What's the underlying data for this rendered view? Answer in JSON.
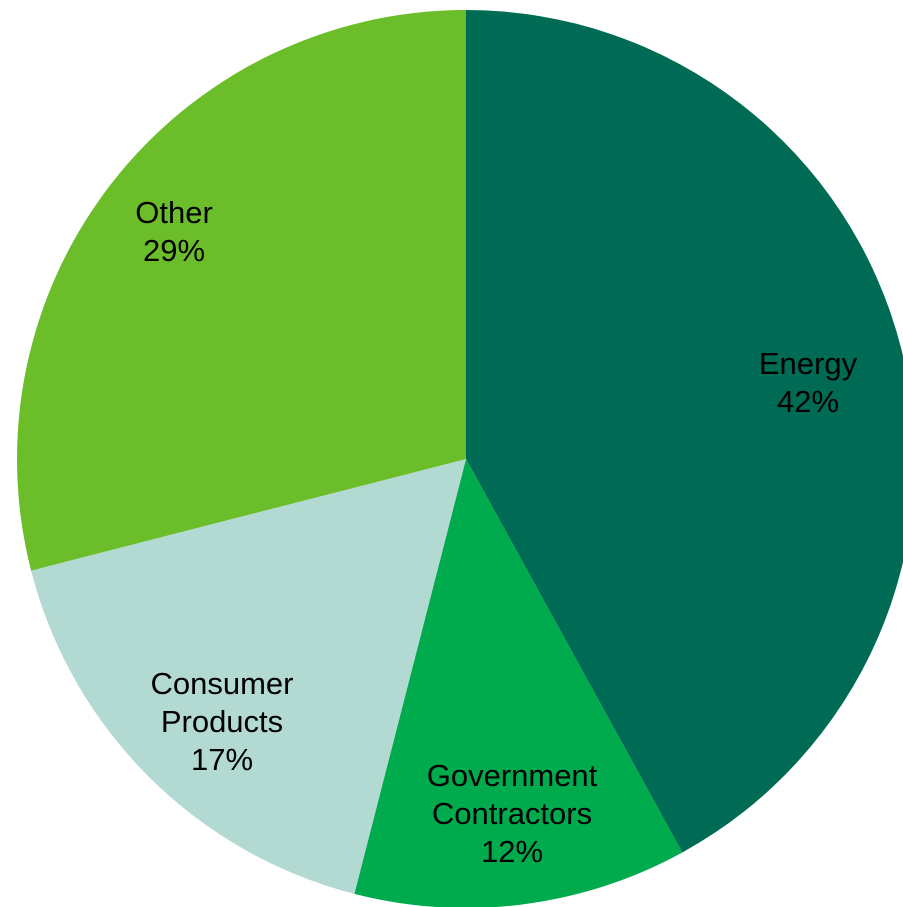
{
  "chart_data": {
    "type": "pie",
    "start_angle": "12 o'clock",
    "direction": "clockwise",
    "slices": [
      {
        "name_lines": [
          "Energy"
        ],
        "value": 42,
        "value_label": "42%",
        "color": "#006B54"
      },
      {
        "name_lines": [
          "Government",
          "Contractors"
        ],
        "value": 12,
        "value_label": "12%",
        "color": "#00AB4E"
      },
      {
        "name_lines": [
          "Consumer",
          "Products"
        ],
        "value": 17,
        "value_label": "17%",
        "color": "#B2DAD2"
      },
      {
        "name_lines": [
          "Other"
        ],
        "value": 29,
        "value_label": "29%",
        "color": "#6BBE2A"
      }
    ]
  }
}
